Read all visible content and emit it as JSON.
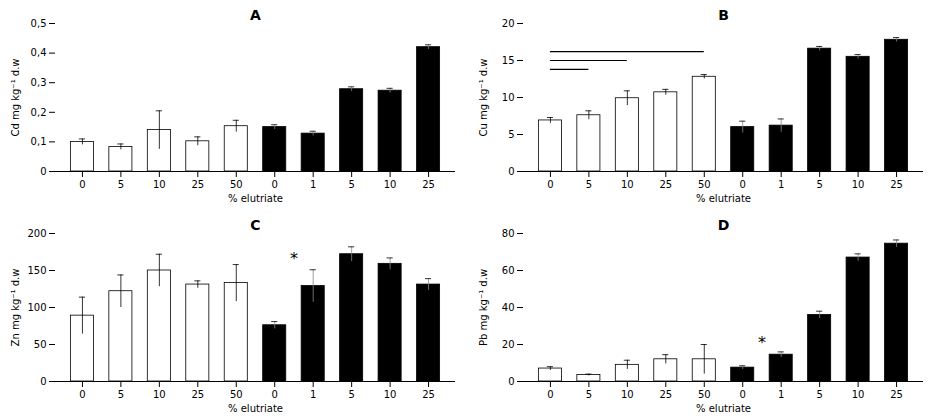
{
  "chart_data": [
    {
      "type": "bar",
      "title": "A",
      "xlabel": "% elutriate",
      "ylabel": "Cd mg kg⁻¹ d.w",
      "categories": [
        "0",
        "5",
        "10",
        "25",
        "50",
        "0",
        "1",
        "5",
        "10",
        "25"
      ],
      "values": [
        0.1,
        0.083,
        0.14,
        0.102,
        0.153,
        0.15,
        0.128,
        0.278,
        0.273,
        0.42
      ],
      "errors": [
        0.01,
        0.01,
        0.065,
        0.015,
        0.02,
        0.008,
        0.008,
        0.008,
        0.008,
        0.008
      ],
      "colors": [
        "white",
        "white",
        "white",
        "white",
        "white",
        "black",
        "black",
        "black",
        "black",
        "black"
      ],
      "ylim": [
        0,
        0.5
      ],
      "yticks": [
        0,
        {
          "value": 0.1,
          "label": "0,1"
        },
        {
          "value": 0.2,
          "label": "0,2"
        },
        {
          "value": 0.3,
          "label": "0,3"
        },
        {
          "value": 0.4,
          "label": "0,4"
        },
        {
          "value": 0.5,
          "label": "0,5"
        }
      ]
    },
    {
      "type": "bar",
      "title": "B",
      "xlabel": "% elutriate",
      "ylabel": "Cu mg kg⁻¹ d.w",
      "categories": [
        "0",
        "5",
        "10",
        "25",
        "50",
        "0",
        "1",
        "5",
        "10",
        "25"
      ],
      "values": [
        6.9,
        7.6,
        9.9,
        10.7,
        12.8,
        6.0,
        6.2,
        16.6,
        15.5,
        17.8
      ],
      "errors": [
        0.4,
        0.6,
        1.0,
        0.4,
        0.3,
        0.8,
        0.9,
        0.3,
        0.3,
        0.3
      ],
      "colors": [
        "white",
        "white",
        "white",
        "white",
        "white",
        "black",
        "black",
        "black",
        "black",
        "black"
      ],
      "ylim": [
        0,
        20
      ],
      "yticks": [
        0,
        5,
        10,
        15,
        20
      ],
      "sig_lines": [
        {
          "from": 0,
          "to": 1,
          "y": 13.8
        },
        {
          "from": 0,
          "to": 2,
          "y": 15.0
        },
        {
          "from": 0,
          "to": 4,
          "y": 16.2
        }
      ]
    },
    {
      "type": "bar",
      "title": "C",
      "xlabel": "% elutriate",
      "ylabel": "Zn mg kg⁻¹ d.w",
      "categories": [
        "0",
        "5",
        "10",
        "25",
        "50",
        "0",
        "1",
        "5",
        "10",
        "25"
      ],
      "values": [
        89,
        122,
        150,
        131,
        133,
        76,
        129,
        172,
        159,
        131
      ],
      "errors": [
        25,
        22,
        22,
        5,
        25,
        5,
        22,
        10,
        8,
        8
      ],
      "colors": [
        "white",
        "white",
        "white",
        "white",
        "white",
        "black",
        "black",
        "black",
        "black",
        "black"
      ],
      "ylim": [
        0,
        200
      ],
      "yticks": [
        0,
        50,
        100,
        150,
        200
      ],
      "annotations": [
        {
          "text": "*",
          "x": 5.5,
          "y": 159
        }
      ]
    },
    {
      "type": "bar",
      "title": "D",
      "xlabel": "% elutriate",
      "ylabel": "Pb mg kg⁻¹ d.w",
      "categories": [
        "0",
        "5",
        "10",
        "25",
        "50",
        "0",
        "1",
        "5",
        "10",
        "25"
      ],
      "values": [
        7.0,
        3.5,
        9.0,
        12.0,
        12.0,
        7.5,
        14.5,
        36.0,
        67.0,
        74.5
      ],
      "errors": [
        1.0,
        0.5,
        2.5,
        2.5,
        8.0,
        1.0,
        1.5,
        2.0,
        2.0,
        2.0
      ],
      "colors": [
        "white",
        "white",
        "white",
        "white",
        "white",
        "black",
        "black",
        "black",
        "black",
        "black"
      ],
      "ylim": [
        0,
        80
      ],
      "yticks": [
        0,
        20,
        40,
        60,
        80
      ],
      "annotations": [
        {
          "text": "*",
          "x": 5.5,
          "y": 18
        }
      ]
    }
  ]
}
